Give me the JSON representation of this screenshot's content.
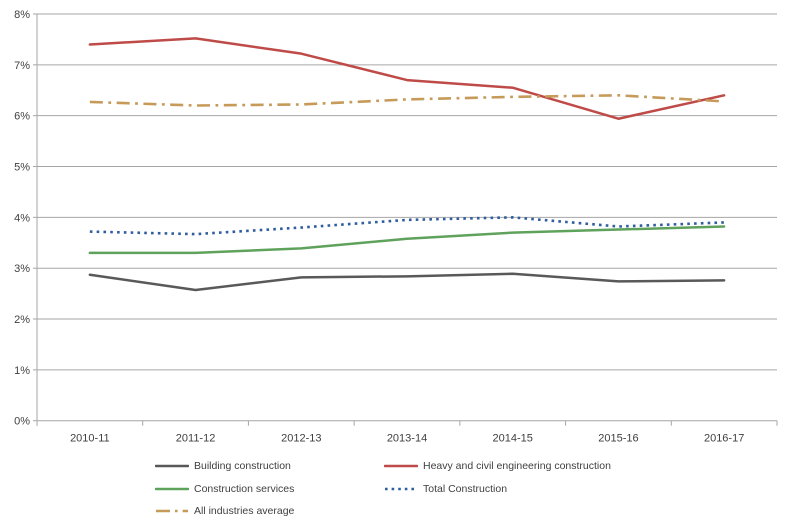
{
  "chart": {
    "background": "#FFFFFF",
    "grid_color": "#A6A6A6",
    "axis_color": "#A6A6A6",
    "label_color": "#3F3F3F"
  },
  "chart_data": {
    "type": "line",
    "title": "",
    "xlabel": "",
    "ylabel": "",
    "grid": "horizontal",
    "legend_position": "bottom",
    "ylim": [
      0,
      8
    ],
    "y_tick_step": 1,
    "y_tick_labels": [
      "0%",
      "1%",
      "2%",
      "3%",
      "4%",
      "5%",
      "6%",
      "7%",
      "8%"
    ],
    "categories": [
      "2010-11",
      "2011-12",
      "2012-13",
      "2013-14",
      "2014-15",
      "2015-16",
      "2016-17"
    ],
    "series": [
      {
        "name": "Building construction",
        "color": "#595959",
        "style": "solid",
        "values": [
          2.87,
          2.57,
          2.82,
          2.84,
          2.89,
          2.74,
          2.76
        ]
      },
      {
        "name": "Heavy and civil engineering construction",
        "color": "#BE4B48",
        "style": "solid",
        "values": [
          7.4,
          7.52,
          7.22,
          6.7,
          6.55,
          5.94,
          6.4
        ]
      },
      {
        "name": "Construction services",
        "color": "#5FA25C",
        "style": "solid",
        "values": [
          3.3,
          3.3,
          3.39,
          3.58,
          3.7,
          3.76,
          3.82
        ]
      },
      {
        "name": "Total Construction",
        "color": "#2F5D9E",
        "style": "dotted",
        "values": [
          3.72,
          3.67,
          3.8,
          3.95,
          4.0,
          3.82,
          3.9
        ]
      },
      {
        "name": "All industries average",
        "color": "#C69A59",
        "style": "dashdot",
        "values": [
          6.27,
          6.2,
          6.22,
          6.32,
          6.37,
          6.4,
          6.28
        ]
      }
    ]
  }
}
